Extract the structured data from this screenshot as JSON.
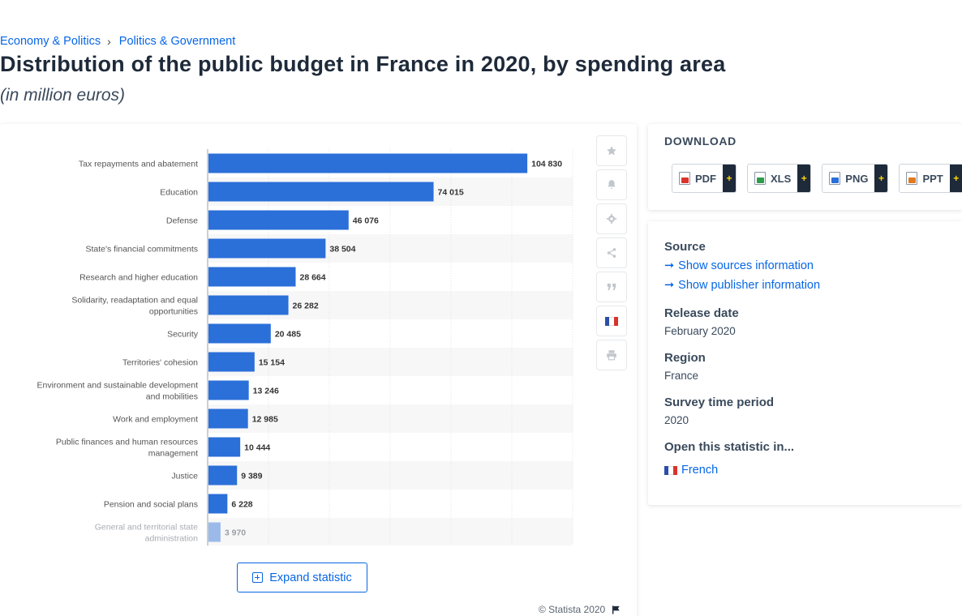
{
  "breadcrumb": {
    "items": [
      "Economy & Politics",
      "Politics & Government"
    ]
  },
  "title": "Distribution of the public budget in France in 2020, by spending area",
  "subtitle": "(in million euros)",
  "toolbar": {
    "icons": [
      "star-icon",
      "bell-icon",
      "gear-icon",
      "share-icon",
      "quote-icon",
      "french-flag-icon",
      "print-icon"
    ]
  },
  "expand_label": "Expand statistic",
  "copyright": "© Statista 2020",
  "download": {
    "title": "DOWNLOAD",
    "buttons": [
      {
        "label": "PDF",
        "plus": "+",
        "color": "#d9342b"
      },
      {
        "label": "XLS",
        "plus": "+",
        "color": "#2e9c48"
      },
      {
        "label": "PNG",
        "plus": "+",
        "color": "#2b6fd9"
      },
      {
        "label": "PPT",
        "plus": "+",
        "color": "#e07a1f"
      }
    ]
  },
  "info": {
    "source_label": "Source",
    "show_sources": "Show sources information",
    "show_publisher": "Show publisher information",
    "release_label": "Release date",
    "release_value": "February 2020",
    "region_label": "Region",
    "region_value": "France",
    "survey_label": "Survey time period",
    "survey_value": "2020",
    "open_label": "Open this statistic in...",
    "open_french": "French"
  },
  "chart_data": {
    "type": "bar",
    "orientation": "horizontal",
    "categories": [
      "Tax repayments and abatement",
      "Education",
      "Defense",
      "State's financial commitments",
      "Research and higher education",
      "Solidarity, readaptation and equal opportunities",
      "Security",
      "Territories' cohesion",
      "Environment and sustainable development and mobilities",
      "Work and employment",
      "Public finances and human resources management",
      "Justice",
      "Pension and social plans",
      "General and territorial state administration"
    ],
    "values": [
      104830,
      74015,
      46076,
      38504,
      28664,
      26282,
      20485,
      15154,
      13246,
      12985,
      10444,
      9389,
      6228,
      3970
    ],
    "value_labels": [
      "104 830",
      "74 015",
      "46 076",
      "38 504",
      "28 664",
      "26 282",
      "20 485",
      "15 154",
      "13 246",
      "12 985",
      "10 444",
      "9 389",
      "6 228",
      "3 970"
    ],
    "xlim": [
      0,
      120000
    ],
    "bar_color": "#2b6fd9",
    "grid": true
  }
}
